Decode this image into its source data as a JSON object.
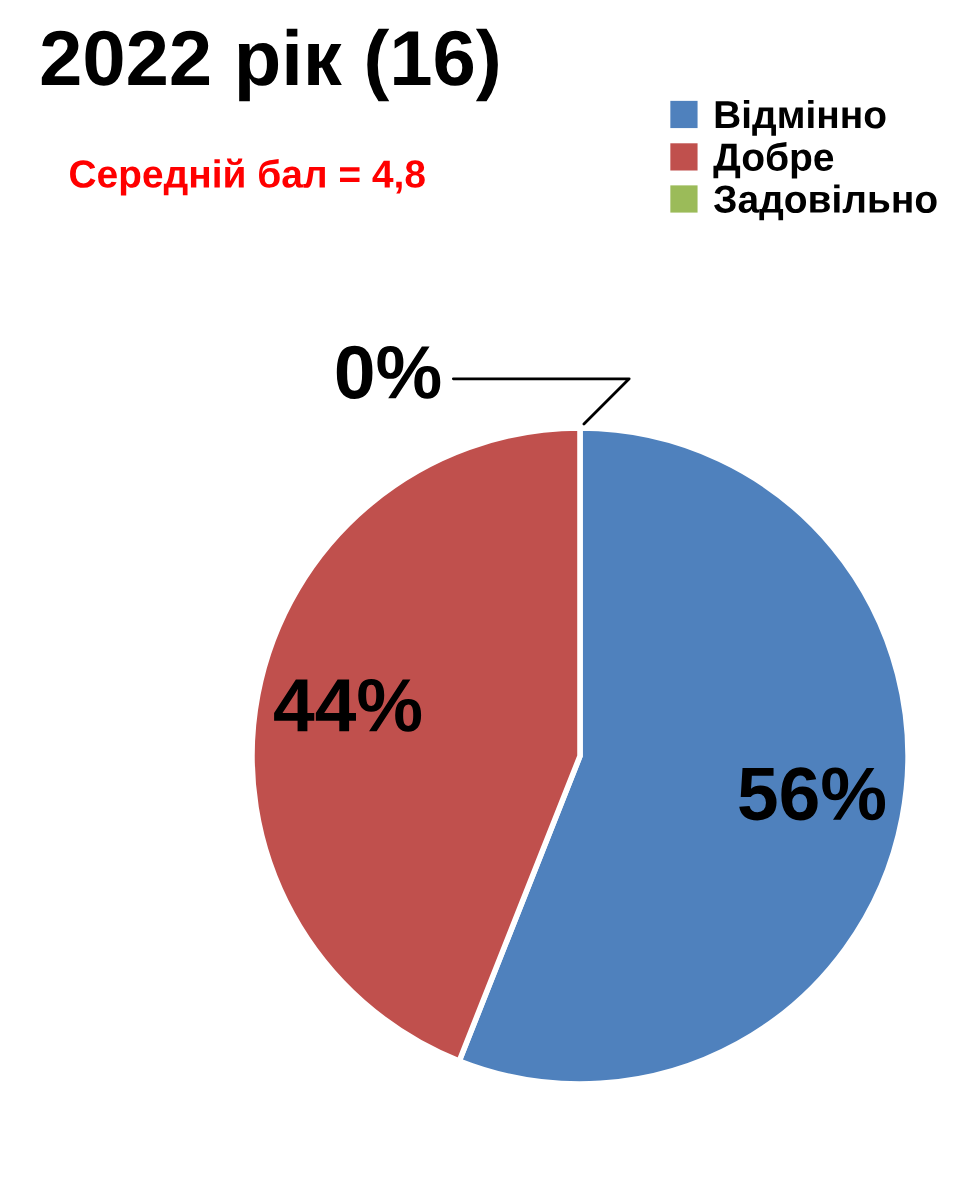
{
  "chart_data": {
    "type": "pie",
    "title": "2022 рік (16)",
    "subtitle": "Середній бал = 4,8",
    "categories": [
      "Відмінно",
      "Добре",
      "Задовільно"
    ],
    "values": [
      56,
      44,
      0
    ],
    "colors": [
      "#4f81bd",
      "#c0504d",
      "#9bbb59"
    ],
    "value_labels": [
      "56%",
      "44%",
      "0%"
    ],
    "legend": "top right"
  }
}
